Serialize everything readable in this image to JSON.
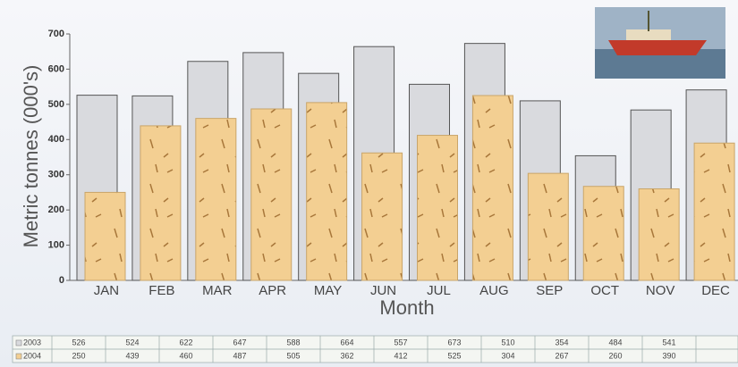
{
  "chart_data": {
    "type": "bar",
    "x_label": "Month",
    "y_label": "Metric tonnes (000's)",
    "categories": [
      "JAN",
      "FEB",
      "MAR",
      "APR",
      "MAY",
      "JUN",
      "JUL",
      "AUG",
      "SEP",
      "OCT",
      "NOV",
      "DEC"
    ],
    "series": [
      {
        "name": "2003",
        "color": "#d9dade",
        "values": [
          526,
          524,
          622,
          647,
          588,
          664,
          557,
          673,
          510,
          354,
          484,
          541
        ]
      },
      {
        "name": "2004",
        "color": "#f3cf92",
        "values": [
          250,
          439,
          460,
          487,
          505,
          362,
          412,
          525,
          304,
          267,
          260,
          390
        ]
      }
    ],
    "ylim": [
      0,
      700
    ],
    "yticks": [
      0,
      100,
      200,
      300,
      400,
      500,
      600,
      700
    ]
  }
}
